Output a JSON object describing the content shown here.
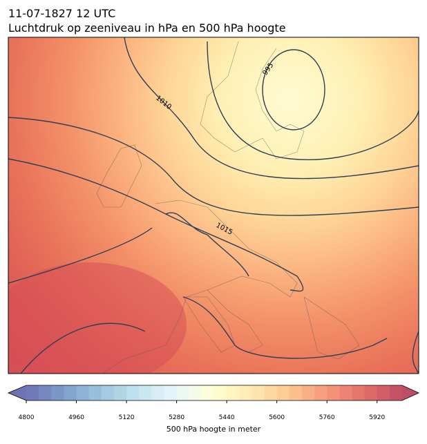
{
  "header": {
    "title": "11-07-1827 12 UTC",
    "subtitle": "Luchtdruk op zeeniveau in hPa en 500 hPa hoogte"
  },
  "map": {
    "contour_labels": [
      "1010",
      "995",
      "1015"
    ]
  },
  "colorbar": {
    "lim": [
      4800,
      6000
    ],
    "step": 40,
    "ticks": [
      4800,
      4960,
      5120,
      5280,
      5440,
      5600,
      5760,
      5920
    ],
    "label": "500 hPa hoogte in meter",
    "colormap": [
      "#313695",
      "#4575b4",
      "#74add1",
      "#abd9e9",
      "#e0f3f8",
      "#ffffbf",
      "#fee090",
      "#fdae61",
      "#f46d43",
      "#d73027",
      "#a50026"
    ],
    "alpha": 0.7
  }
}
